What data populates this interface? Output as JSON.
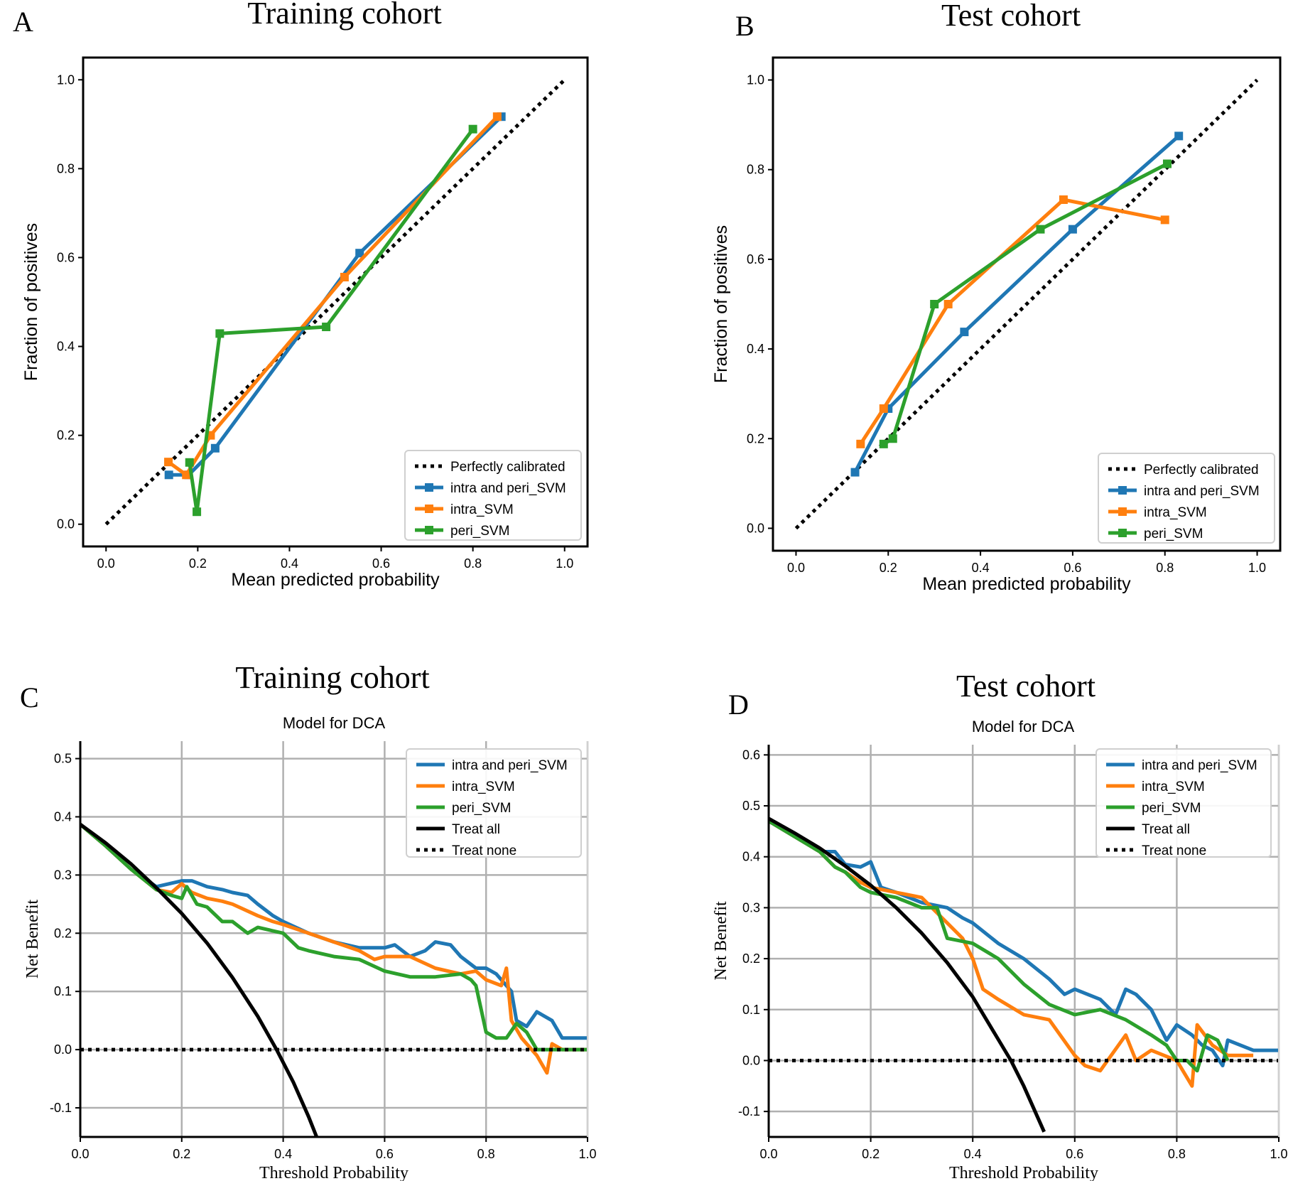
{
  "colors": {
    "blue": "#1f77b4",
    "orange": "#ff7f0e",
    "green": "#2ca02c",
    "black": "#000000",
    "grid": "#b0b0b0"
  },
  "chart_data": [
    {
      "panel_letter": "A",
      "type": "line",
      "cohort_title": "Training cohort",
      "subtitle": "",
      "xlabel": "Mean predicted probability",
      "ylabel": "Fraction of positives",
      "xlim": [
        -0.05,
        1.05
      ],
      "ylim": [
        -0.05,
        1.05
      ],
      "xticks": [
        0.0,
        0.2,
        0.4,
        0.6,
        0.8,
        1.0
      ],
      "xtick_labels": [
        "0.0",
        "0.2",
        "0.4",
        "0.6",
        "0.8",
        "1.0"
      ],
      "yticks": [
        0.0,
        0.2,
        0.4,
        0.6,
        0.8,
        1.0
      ],
      "ytick_labels": [
        "0.0",
        "0.2",
        "0.4",
        "0.6",
        "0.8",
        "1.0"
      ],
      "grid": false,
      "legend_position": "lower-right",
      "series": [
        {
          "name": "Perfectly calibrated",
          "color": "black",
          "style": "dotted",
          "markers": false,
          "x": [
            0.0,
            1.0
          ],
          "y": [
            0.0,
            1.0
          ]
        },
        {
          "name": "intra and peri_SVM",
          "color": "blue",
          "style": "solid",
          "markers": true,
          "x": [
            0.137,
            0.18,
            0.238,
            0.553,
            0.862
          ],
          "y": [
            0.111,
            0.111,
            0.171,
            0.61,
            0.917
          ]
        },
        {
          "name": "intra_SVM",
          "color": "orange",
          "style": "solid",
          "markers": true,
          "x": [
            0.136,
            0.175,
            0.228,
            0.52,
            0.853
          ],
          "y": [
            0.14,
            0.111,
            0.2,
            0.556,
            0.917
          ]
        },
        {
          "name": "peri_SVM",
          "color": "green",
          "style": "solid",
          "markers": true,
          "x": [
            0.182,
            0.198,
            0.248,
            0.48,
            0.8
          ],
          "y": [
            0.139,
            0.028,
            0.429,
            0.444,
            0.889
          ]
        }
      ]
    },
    {
      "panel_letter": "B",
      "type": "line",
      "cohort_title": "Test cohort",
      "subtitle": "",
      "xlabel": "Mean predicted probability",
      "ylabel": "Fraction of positives",
      "xlim": [
        -0.05,
        1.05
      ],
      "ylim": [
        -0.05,
        1.05
      ],
      "xticks": [
        0.0,
        0.2,
        0.4,
        0.6,
        0.8,
        1.0
      ],
      "xtick_labels": [
        "0.0",
        "0.2",
        "0.4",
        "0.6",
        "0.8",
        "1.0"
      ],
      "yticks": [
        0.0,
        0.2,
        0.4,
        0.6,
        0.8,
        1.0
      ],
      "ytick_labels": [
        "0.0",
        "0.2",
        "0.4",
        "0.6",
        "0.8",
        "1.0"
      ],
      "grid": false,
      "legend_position": "lower-right",
      "series": [
        {
          "name": "Perfectly calibrated",
          "color": "black",
          "style": "dotted",
          "markers": false,
          "x": [
            0.0,
            1.0
          ],
          "y": [
            0.0,
            1.0
          ]
        },
        {
          "name": "intra and peri_SVM",
          "color": "blue",
          "style": "solid",
          "markers": true,
          "x": [
            0.128,
            0.2,
            0.365,
            0.6,
            0.83
          ],
          "y": [
            0.125,
            0.267,
            0.438,
            0.667,
            0.875
          ]
        },
        {
          "name": "intra_SVM",
          "color": "orange",
          "style": "solid",
          "markers": true,
          "x": [
            0.14,
            0.19,
            0.33,
            0.58,
            0.8
          ],
          "y": [
            0.188,
            0.267,
            0.5,
            0.733,
            0.688
          ]
        },
        {
          "name": "peri_SVM",
          "color": "green",
          "style": "solid",
          "markers": true,
          "x": [
            0.19,
            0.21,
            0.3,
            0.53,
            0.805
          ],
          "y": [
            0.188,
            0.2,
            0.5,
            0.667,
            0.813
          ]
        }
      ]
    },
    {
      "panel_letter": "C",
      "type": "line",
      "cohort_title": "Training cohort",
      "subtitle": "Model for DCA",
      "xlabel": "Threshold Probability",
      "ylabel": "Net Benefit",
      "xlim": [
        0.0,
        1.0
      ],
      "ylim": [
        -0.15,
        0.53
      ],
      "xticks": [
        0.0,
        0.2,
        0.4,
        0.6,
        0.8,
        1.0
      ],
      "xtick_labels": [
        "0.0",
        "0.2",
        "0.4",
        "0.6",
        "0.8",
        "1.0"
      ],
      "yticks": [
        -0.1,
        0.0,
        0.1,
        0.2,
        0.3,
        0.4,
        0.5
      ],
      "ytick_labels": [
        "-0.1",
        "0.0",
        "0.1",
        "0.2",
        "0.3",
        "0.4",
        "0.5"
      ],
      "grid": true,
      "legend_position": "top-right",
      "series": [
        {
          "name": "intra and peri_SVM",
          "color": "blue",
          "style": "solid",
          "markers": false,
          "x": [
            0.0,
            0.05,
            0.1,
            0.15,
            0.2,
            0.22,
            0.25,
            0.28,
            0.3,
            0.33,
            0.35,
            0.38,
            0.4,
            0.45,
            0.5,
            0.55,
            0.6,
            0.62,
            0.65,
            0.68,
            0.7,
            0.73,
            0.75,
            0.78,
            0.8,
            0.82,
            0.85,
            0.86,
            0.88,
            0.9,
            0.93,
            0.95,
            1.0
          ],
          "y": [
            0.387,
            0.35,
            0.31,
            0.28,
            0.29,
            0.29,
            0.28,
            0.275,
            0.27,
            0.265,
            0.25,
            0.23,
            0.22,
            0.2,
            0.185,
            0.175,
            0.175,
            0.18,
            0.16,
            0.17,
            0.185,
            0.18,
            0.16,
            0.14,
            0.14,
            0.13,
            0.1,
            0.05,
            0.04,
            0.065,
            0.05,
            0.02,
            0.02
          ]
        },
        {
          "name": "intra_SVM",
          "color": "orange",
          "style": "solid",
          "markers": false,
          "x": [
            0.0,
            0.05,
            0.1,
            0.15,
            0.18,
            0.2,
            0.22,
            0.25,
            0.28,
            0.3,
            0.35,
            0.38,
            0.4,
            0.45,
            0.5,
            0.55,
            0.58,
            0.6,
            0.65,
            0.7,
            0.75,
            0.78,
            0.8,
            0.83,
            0.84,
            0.85,
            0.87,
            0.9,
            0.92,
            0.93,
            0.95,
            1.0
          ],
          "y": [
            0.387,
            0.35,
            0.31,
            0.275,
            0.27,
            0.285,
            0.27,
            0.26,
            0.255,
            0.25,
            0.23,
            0.22,
            0.215,
            0.2,
            0.185,
            0.17,
            0.155,
            0.16,
            0.16,
            0.14,
            0.13,
            0.135,
            0.12,
            0.11,
            0.14,
            0.05,
            0.02,
            -0.01,
            -0.04,
            0.01,
            0.0,
            0.0
          ]
        },
        {
          "name": "peri_SVM",
          "color": "green",
          "style": "solid",
          "markers": false,
          "x": [
            0.0,
            0.05,
            0.1,
            0.15,
            0.18,
            0.2,
            0.21,
            0.23,
            0.25,
            0.28,
            0.3,
            0.33,
            0.35,
            0.4,
            0.43,
            0.45,
            0.5,
            0.55,
            0.6,
            0.65,
            0.7,
            0.75,
            0.77,
            0.78,
            0.79,
            0.8,
            0.82,
            0.84,
            0.86,
            0.88,
            0.9,
            1.0
          ],
          "y": [
            0.387,
            0.35,
            0.31,
            0.275,
            0.265,
            0.26,
            0.28,
            0.25,
            0.245,
            0.22,
            0.22,
            0.2,
            0.21,
            0.2,
            0.175,
            0.17,
            0.16,
            0.155,
            0.135,
            0.125,
            0.125,
            0.13,
            0.12,
            0.11,
            0.07,
            0.03,
            0.02,
            0.02,
            0.045,
            0.03,
            0.0,
            0.0
          ]
        },
        {
          "name": "Treat all",
          "color": "black",
          "style": "solid",
          "markers": false,
          "prevalence": 0.387,
          "x": [
            0.0,
            0.05,
            0.1,
            0.15,
            0.2,
            0.25,
            0.3,
            0.35,
            0.387,
            0.42,
            0.45,
            0.466
          ],
          "y": [
            0.387,
            0.355,
            0.319,
            0.278,
            0.234,
            0.183,
            0.124,
            0.057,
            0.0,
            -0.056,
            -0.115,
            -0.15
          ]
        },
        {
          "name": "Treat none",
          "color": "black",
          "style": "dotted",
          "markers": false,
          "x": [
            0.0,
            1.0
          ],
          "y": [
            0.0,
            0.0
          ]
        }
      ]
    },
    {
      "panel_letter": "D",
      "type": "line",
      "cohort_title": "Test cohort",
      "subtitle": "Model for DCA",
      "xlabel": "Threshold Probability",
      "ylabel": "Net Benefit",
      "xlim": [
        0.0,
        1.0
      ],
      "ylim": [
        -0.15,
        0.62
      ],
      "xticks": [
        0.0,
        0.2,
        0.4,
        0.6,
        0.8,
        1.0
      ],
      "xtick_labels": [
        "0.0",
        "0.2",
        "0.4",
        "0.6",
        "0.8",
        "1.0"
      ],
      "yticks": [
        -0.1,
        0.0,
        0.1,
        0.2,
        0.3,
        0.4,
        0.5,
        0.6
      ],
      "ytick_labels": [
        "-0.1",
        "0.0",
        "0.1",
        "0.2",
        "0.3",
        "0.4",
        "0.5",
        "0.6"
      ],
      "grid": true,
      "legend_position": "top-right",
      "series": [
        {
          "name": "intra and peri_SVM",
          "color": "blue",
          "style": "solid",
          "markers": false,
          "x": [
            0.0,
            0.05,
            0.1,
            0.13,
            0.15,
            0.18,
            0.2,
            0.22,
            0.25,
            0.3,
            0.35,
            0.38,
            0.4,
            0.45,
            0.5,
            0.55,
            0.58,
            0.6,
            0.65,
            0.68,
            0.7,
            0.72,
            0.75,
            0.78,
            0.8,
            0.83,
            0.85,
            0.87,
            0.89,
            0.9,
            0.95,
            1.0
          ],
          "y": [
            0.47,
            0.44,
            0.41,
            0.41,
            0.385,
            0.38,
            0.39,
            0.34,
            0.33,
            0.31,
            0.3,
            0.28,
            0.27,
            0.23,
            0.2,
            0.16,
            0.13,
            0.14,
            0.12,
            0.09,
            0.14,
            0.13,
            0.1,
            0.04,
            0.07,
            0.05,
            0.03,
            0.02,
            -0.01,
            0.04,
            0.02,
            0.02
          ]
        },
        {
          "name": "intra_SVM",
          "color": "orange",
          "style": "solid",
          "markers": false,
          "x": [
            0.0,
            0.05,
            0.1,
            0.13,
            0.15,
            0.18,
            0.2,
            0.25,
            0.3,
            0.33,
            0.35,
            0.38,
            0.4,
            0.42,
            0.45,
            0.5,
            0.55,
            0.6,
            0.62,
            0.65,
            0.7,
            0.72,
            0.75,
            0.8,
            0.83,
            0.84,
            0.87,
            0.9,
            0.95
          ],
          "y": [
            0.47,
            0.44,
            0.41,
            0.38,
            0.37,
            0.35,
            0.34,
            0.33,
            0.32,
            0.29,
            0.27,
            0.24,
            0.2,
            0.14,
            0.12,
            0.09,
            0.08,
            0.01,
            -0.01,
            -0.02,
            0.05,
            0.0,
            0.02,
            0.0,
            -0.05,
            0.07,
            0.03,
            0.01,
            0.01
          ]
        },
        {
          "name": "peri_SVM",
          "color": "green",
          "style": "solid",
          "markers": false,
          "x": [
            0.0,
            0.05,
            0.1,
            0.13,
            0.15,
            0.18,
            0.2,
            0.25,
            0.3,
            0.33,
            0.35,
            0.4,
            0.45,
            0.5,
            0.55,
            0.6,
            0.65,
            0.7,
            0.75,
            0.78,
            0.8,
            0.82,
            0.84,
            0.86,
            0.88,
            0.9
          ],
          "y": [
            0.47,
            0.44,
            0.41,
            0.38,
            0.37,
            0.34,
            0.33,
            0.32,
            0.3,
            0.3,
            0.24,
            0.23,
            0.2,
            0.15,
            0.11,
            0.09,
            0.1,
            0.08,
            0.05,
            0.03,
            0.0,
            0.0,
            -0.02,
            0.05,
            0.04,
            0.0
          ]
        },
        {
          "name": "Treat all",
          "color": "black",
          "style": "solid",
          "markers": false,
          "prevalence": 0.475,
          "x": [
            0.0,
            0.05,
            0.1,
            0.15,
            0.2,
            0.25,
            0.3,
            0.35,
            0.4,
            0.475,
            0.5,
            0.54
          ],
          "y": [
            0.475,
            0.447,
            0.417,
            0.382,
            0.344,
            0.3,
            0.25,
            0.192,
            0.125,
            0.0,
            -0.05,
            -0.14
          ]
        },
        {
          "name": "Treat none",
          "color": "black",
          "style": "dotted",
          "markers": false,
          "x": [
            0.0,
            1.0
          ],
          "y": [
            0.0,
            0.0
          ]
        }
      ]
    }
  ]
}
